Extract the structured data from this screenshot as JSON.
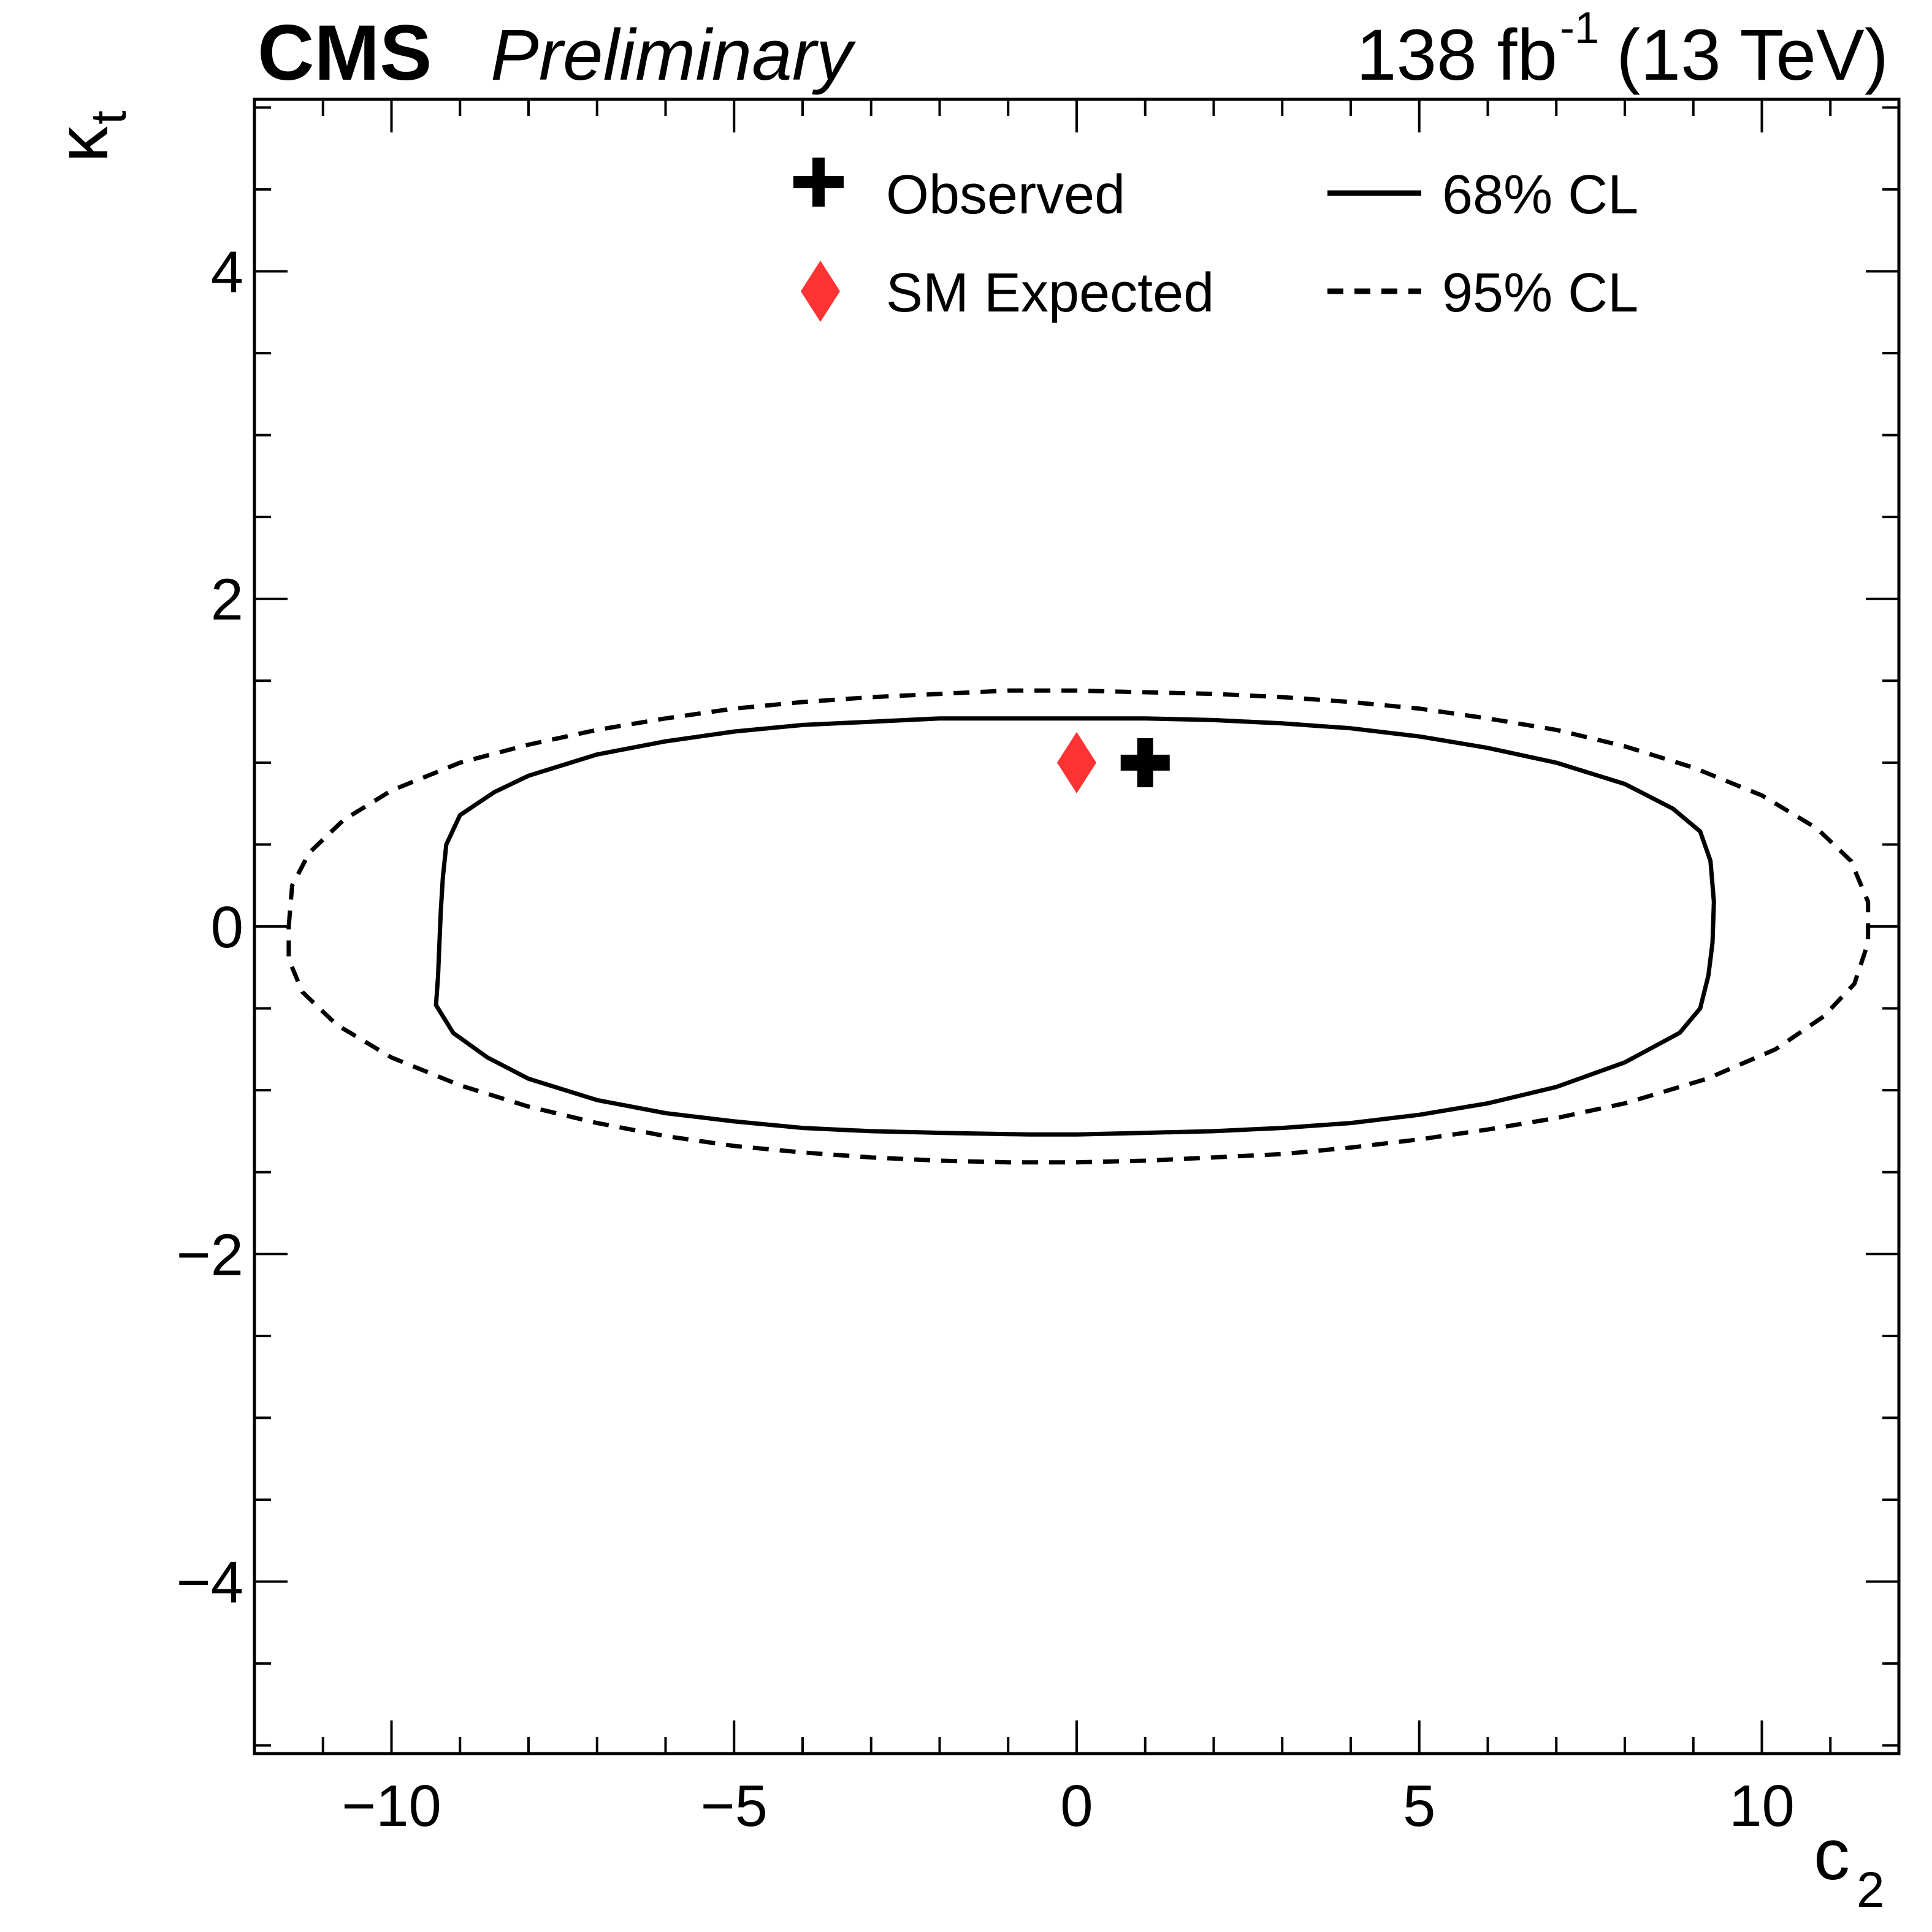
{
  "chart_data": {
    "type": "contour",
    "header": {
      "experiment": "CMS",
      "status": "Preliminary",
      "lumi_value": "138 fb",
      "lumi_exponent": "-1",
      "energy": "(13 TeV)"
    },
    "xlabel": {
      "main": "c",
      "sub": "2"
    },
    "ylabel": {
      "main": "κ",
      "sub": "t"
    },
    "xlim": [
      -12,
      12
    ],
    "ylim": [
      -5.05,
      5.05
    ],
    "xticks": [
      -10,
      -5,
      0,
      5,
      10
    ],
    "xtick_labels": [
      "−10",
      "−5",
      "0",
      "5",
      "10"
    ],
    "yticks": [
      -4,
      -2,
      0,
      2,
      4
    ],
    "ytick_labels": [
      "−4",
      "−2",
      "0",
      "2",
      "4"
    ],
    "grid": false,
    "legend": {
      "placement": "top",
      "entries": [
        {
          "label": "Observed",
          "marker": "cross",
          "color": "#000000"
        },
        {
          "label": "SM Expected",
          "marker": "diamond",
          "color": "#ff3333"
        },
        {
          "label": "68% CL",
          "line": "solid",
          "color": "#000000"
        },
        {
          "label": "95% CL",
          "line": "dashed",
          "color": "#000000"
        }
      ]
    },
    "points": [
      {
        "name": "Observed",
        "x": 1.0,
        "y": 1.0,
        "marker": "cross",
        "color": "#000000"
      },
      {
        "name": "SM Expected",
        "x": 0.0,
        "y": 1.0,
        "marker": "diamond",
        "color": "#ff3333"
      }
    ],
    "contours": [
      {
        "name": "68% CL",
        "style": "solid",
        "color": "#000000",
        "points": [
          [
            -9.2,
            0.5
          ],
          [
            -9.0,
            0.68
          ],
          [
            -8.5,
            0.82
          ],
          [
            -8.0,
            0.92
          ],
          [
            -7.0,
            1.05
          ],
          [
            -6.0,
            1.13
          ],
          [
            -5.0,
            1.19
          ],
          [
            -4.0,
            1.23
          ],
          [
            -3.0,
            1.25
          ],
          [
            -2.0,
            1.27
          ],
          [
            -1.0,
            1.27
          ],
          [
            0.0,
            1.27
          ],
          [
            1.0,
            1.27
          ],
          [
            2.0,
            1.26
          ],
          [
            3.0,
            1.24
          ],
          [
            4.0,
            1.21
          ],
          [
            5.0,
            1.16
          ],
          [
            6.0,
            1.09
          ],
          [
            7.0,
            1.0
          ],
          [
            8.0,
            0.87
          ],
          [
            8.7,
            0.72
          ],
          [
            9.1,
            0.58
          ],
          [
            9.25,
            0.4
          ],
          [
            9.3,
            0.15
          ],
          [
            9.28,
            -0.1
          ],
          [
            9.22,
            -0.3
          ],
          [
            9.1,
            -0.5
          ],
          [
            8.8,
            -0.65
          ],
          [
            8.0,
            -0.83
          ],
          [
            7.0,
            -0.98
          ],
          [
            6.0,
            -1.08
          ],
          [
            5.0,
            -1.15
          ],
          [
            4.0,
            -1.2
          ],
          [
            3.0,
            -1.23
          ],
          [
            2.0,
            -1.25
          ],
          [
            1.0,
            -1.26
          ],
          [
            0.0,
            -1.27
          ],
          [
            -0.7,
            -1.27
          ],
          [
            -2.0,
            -1.26
          ],
          [
            -3.0,
            -1.25
          ],
          [
            -4.0,
            -1.23
          ],
          [
            -5.0,
            -1.19
          ],
          [
            -6.0,
            -1.14
          ],
          [
            -7.0,
            -1.06
          ],
          [
            -8.0,
            -0.93
          ],
          [
            -8.6,
            -0.8
          ],
          [
            -9.1,
            -0.65
          ],
          [
            -9.35,
            -0.48
          ],
          [
            -9.32,
            -0.3
          ],
          [
            -9.3,
            -0.1
          ],
          [
            -9.28,
            0.1
          ],
          [
            -9.25,
            0.3
          ],
          [
            -9.2,
            0.5
          ]
        ]
      },
      {
        "name": "95% CL",
        "style": "dashed",
        "color": "#000000",
        "points": [
          [
            -11.5,
            0.0
          ],
          [
            -11.45,
            0.25
          ],
          [
            -11.2,
            0.45
          ],
          [
            -10.7,
            0.65
          ],
          [
            -10.0,
            0.83
          ],
          [
            -9.0,
            1.0
          ],
          [
            -8.0,
            1.11
          ],
          [
            -7.0,
            1.2
          ],
          [
            -6.0,
            1.27
          ],
          [
            -5.0,
            1.33
          ],
          [
            -4.0,
            1.37
          ],
          [
            -3.0,
            1.4
          ],
          [
            -2.0,
            1.42
          ],
          [
            -1.0,
            1.44
          ],
          [
            0.0,
            1.44
          ],
          [
            1.0,
            1.43
          ],
          [
            2.0,
            1.42
          ],
          [
            3.0,
            1.4
          ],
          [
            4.0,
            1.37
          ],
          [
            5.0,
            1.33
          ],
          [
            6.0,
            1.27
          ],
          [
            7.0,
            1.2
          ],
          [
            8.0,
            1.1
          ],
          [
            9.0,
            0.97
          ],
          [
            10.0,
            0.8
          ],
          [
            10.8,
            0.6
          ],
          [
            11.3,
            0.4
          ],
          [
            11.55,
            0.15
          ],
          [
            11.55,
            -0.1
          ],
          [
            11.35,
            -0.35
          ],
          [
            10.9,
            -0.55
          ],
          [
            10.2,
            -0.75
          ],
          [
            9.2,
            -0.93
          ],
          [
            8.0,
            -1.08
          ],
          [
            7.0,
            -1.17
          ],
          [
            6.0,
            -1.24
          ],
          [
            5.0,
            -1.3
          ],
          [
            4.0,
            -1.35
          ],
          [
            3.0,
            -1.39
          ],
          [
            2.0,
            -1.41
          ],
          [
            1.0,
            -1.43
          ],
          [
            0.0,
            -1.44
          ],
          [
            -1.0,
            -1.44
          ],
          [
            -2.0,
            -1.43
          ],
          [
            -3.0,
            -1.41
          ],
          [
            -4.0,
            -1.38
          ],
          [
            -5.0,
            -1.34
          ],
          [
            -6.0,
            -1.28
          ],
          [
            -7.0,
            -1.2
          ],
          [
            -8.0,
            -1.1
          ],
          [
            -9.0,
            -0.97
          ],
          [
            -10.0,
            -0.8
          ],
          [
            -10.8,
            -0.6
          ],
          [
            -11.3,
            -0.4
          ],
          [
            -11.5,
            -0.2
          ],
          [
            -11.5,
            0.0
          ]
        ]
      }
    ]
  }
}
